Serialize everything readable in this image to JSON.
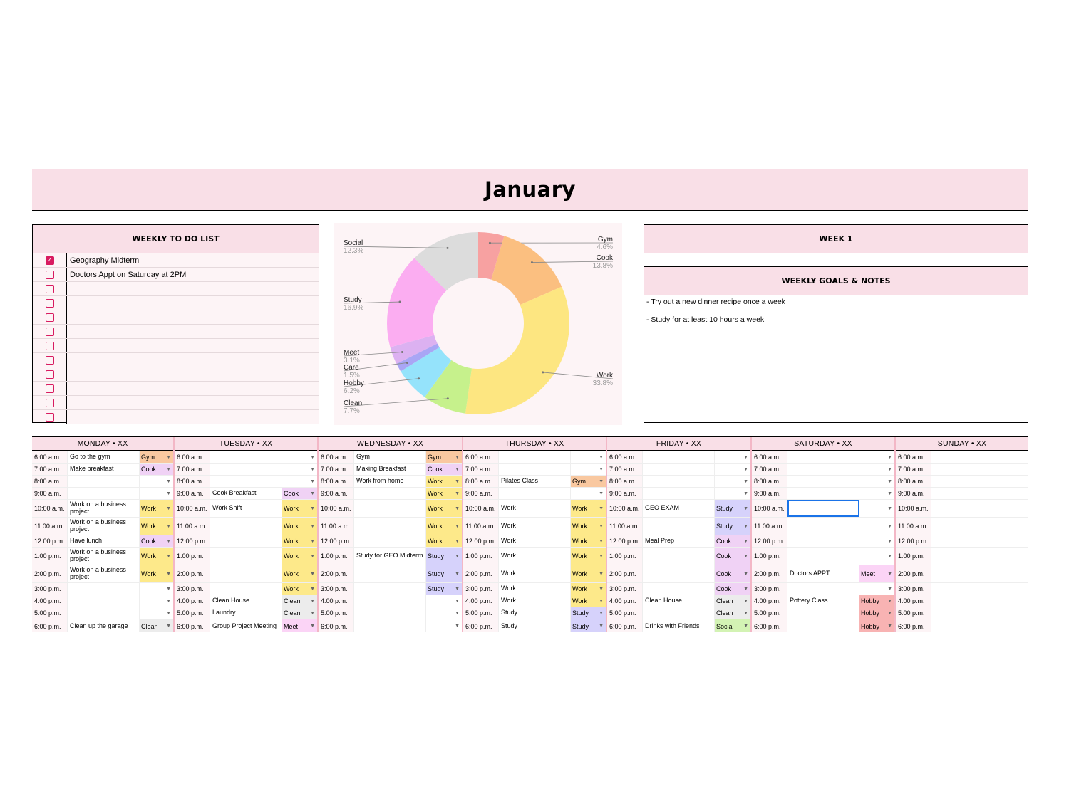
{
  "title": "January",
  "todo": {
    "header": "WEEKLY TO DO LIST",
    "items": [
      {
        "text": "Geography Midterm",
        "checked": true
      },
      {
        "text": "Doctors Appt on Saturday at 2PM",
        "checked": false
      },
      {
        "text": "",
        "checked": false
      },
      {
        "text": "",
        "checked": false
      },
      {
        "text": "",
        "checked": false
      },
      {
        "text": "",
        "checked": false
      },
      {
        "text": "",
        "checked": false
      },
      {
        "text": "",
        "checked": false
      },
      {
        "text": "",
        "checked": false
      },
      {
        "text": "",
        "checked": false
      },
      {
        "text": "",
        "checked": false
      },
      {
        "text": "",
        "checked": false
      }
    ]
  },
  "week_label": "WEEK 1",
  "goals": {
    "header": "WEEKLY GOALS & NOTES",
    "lines": [
      "- Try out a new dinner recipe once a week",
      "- Study for at least 10 hours a week"
    ]
  },
  "chart_data": {
    "type": "pie",
    "donut": true,
    "slices": [
      {
        "label": "Gym",
        "value": 4.6,
        "pct": "4.6%",
        "color": "#f7a1a1"
      },
      {
        "label": "Cook",
        "value": 13.8,
        "pct": "13.8%",
        "color": "#fbbf80"
      },
      {
        "label": "Work",
        "value": 33.8,
        "pct": "33.8%",
        "color": "#fde681"
      },
      {
        "label": "Clean",
        "value": 7.7,
        "pct": "7.7%",
        "color": "#c6f18c"
      },
      {
        "label": "Hobby",
        "value": 6.2,
        "pct": "6.2%",
        "color": "#95e3fb"
      },
      {
        "label": "Care",
        "value": 1.5,
        "pct": "1.5%",
        "color": "#a9a6f5"
      },
      {
        "label": "Meet",
        "value": 3.1,
        "pct": "3.1%",
        "color": "#dcb1f1"
      },
      {
        "label": "Study",
        "value": 16.9,
        "pct": "16.9%",
        "color": "#fbadf1"
      },
      {
        "label": "Social",
        "value": 12.3,
        "pct": "12.3%",
        "color": "#dcdcdc"
      }
    ]
  },
  "tag_colors": {
    "Gym": "#f9c8a0",
    "Cook": "#f0d2f5",
    "Work": "#fde98a",
    "Study": "#d6d2fb",
    "Clean": "#ececec",
    "Meet": "#fbd4f6",
    "Hobby": "#f8b3b3",
    "Social": "#d3f3b4"
  },
  "days": [
    {
      "name": "MONDAY • XX",
      "rows": [
        {
          "time": "6:00 a.m.",
          "event": "Go to the gym",
          "tag": "Gym"
        },
        {
          "time": "7:00 a.m.",
          "event": "Make breakfast",
          "tag": "Cook"
        },
        {
          "time": "8:00 a.m.",
          "event": "",
          "tag": ""
        },
        {
          "time": "9:00 a.m.",
          "event": "",
          "tag": ""
        },
        {
          "time": "10:00 a.m.",
          "event": "Work on a business project",
          "tag": "Work"
        },
        {
          "time": "11:00 a.m.",
          "event": "Work on a business project",
          "tag": "Work"
        },
        {
          "time": "12:00 p.m.",
          "event": "Have lunch",
          "tag": "Cook"
        },
        {
          "time": "1:00 p.m.",
          "event": "Work on a business project",
          "tag": "Work"
        },
        {
          "time": "2:00 p.m.",
          "event": "Work on a business project",
          "tag": "Work"
        },
        {
          "time": "3:00 p.m.",
          "event": "",
          "tag": ""
        },
        {
          "time": "4:00 p.m.",
          "event": "",
          "tag": ""
        },
        {
          "time": "5:00 p.m.",
          "event": "",
          "tag": ""
        },
        {
          "time": "6:00 p.m.",
          "event": "Clean up the garage",
          "tag": "Clean"
        }
      ]
    },
    {
      "name": "TUESDAY • XX",
      "rows": [
        {
          "time": "6:00 a.m.",
          "event": "",
          "tag": ""
        },
        {
          "time": "7:00 a.m.",
          "event": "",
          "tag": ""
        },
        {
          "time": "8:00 a.m.",
          "event": "",
          "tag": ""
        },
        {
          "time": "9:00 a.m.",
          "event": "Cook Breakfast",
          "tag": "Cook"
        },
        {
          "time": "10:00 a.m.",
          "event": "Work Shift",
          "tag": "Work"
        },
        {
          "time": "11:00 a.m.",
          "event": "",
          "tag": "Work"
        },
        {
          "time": "12:00 p.m.",
          "event": "",
          "tag": "Work"
        },
        {
          "time": "1:00 p.m.",
          "event": "",
          "tag": "Work"
        },
        {
          "time": "2:00 p.m.",
          "event": "",
          "tag": "Work"
        },
        {
          "time": "3:00 p.m.",
          "event": "",
          "tag": "Work"
        },
        {
          "time": "4:00 p.m.",
          "event": "Clean House",
          "tag": "Clean"
        },
        {
          "time": "5:00 p.m.",
          "event": "Laundry",
          "tag": "Clean"
        },
        {
          "time": "6:00 p.m.",
          "event": "Group Project Meeting",
          "tag": "Meet"
        }
      ]
    },
    {
      "name": "WEDNESDAY • XX",
      "rows": [
        {
          "time": "6:00 a.m.",
          "event": "Gym",
          "tag": "Gym"
        },
        {
          "time": "7:00 a.m.",
          "event": "Making Breakfast",
          "tag": "Cook"
        },
        {
          "time": "8:00 a.m.",
          "event": "Work from home",
          "tag": "Work"
        },
        {
          "time": "9:00 a.m.",
          "event": "",
          "tag": "Work"
        },
        {
          "time": "10:00 a.m.",
          "event": "",
          "tag": "Work"
        },
        {
          "time": "11:00 a.m.",
          "event": "",
          "tag": "Work"
        },
        {
          "time": "12:00 p.m.",
          "event": "",
          "tag": "Work"
        },
        {
          "time": "1:00 p.m.",
          "event": "Study for GEO Midterm",
          "tag": "Study"
        },
        {
          "time": "2:00 p.m.",
          "event": "",
          "tag": "Study"
        },
        {
          "time": "3:00 p.m.",
          "event": "",
          "tag": "Study"
        },
        {
          "time": "4:00 p.m.",
          "event": "",
          "tag": ""
        },
        {
          "time": "5:00 p.m.",
          "event": "",
          "tag": ""
        },
        {
          "time": "6:00 p.m.",
          "event": "",
          "tag": ""
        }
      ]
    },
    {
      "name": "THURSDAY • XX",
      "rows": [
        {
          "time": "6:00 a.m.",
          "event": "",
          "tag": ""
        },
        {
          "time": "7:00 a.m.",
          "event": "",
          "tag": ""
        },
        {
          "time": "8:00 a.m.",
          "event": "Pilates Class",
          "tag": "Gym"
        },
        {
          "time": "9:00 a.m.",
          "event": "",
          "tag": ""
        },
        {
          "time": "10:00 a.m.",
          "event": "Work",
          "tag": "Work"
        },
        {
          "time": "11:00 a.m.",
          "event": "Work",
          "tag": "Work"
        },
        {
          "time": "12:00 p.m.",
          "event": "Work",
          "tag": "Work"
        },
        {
          "time": "1:00 p.m.",
          "event": "Work",
          "tag": "Work"
        },
        {
          "time": "2:00 p.m.",
          "event": "Work",
          "tag": "Work"
        },
        {
          "time": "3:00 p.m.",
          "event": "Work",
          "tag": "Work"
        },
        {
          "time": "4:00 p.m.",
          "event": "Work",
          "tag": "Work"
        },
        {
          "time": "5:00 p.m.",
          "event": "Study",
          "tag": "Study"
        },
        {
          "time": "6:00 p.m.",
          "event": "Study",
          "tag": "Study"
        }
      ]
    },
    {
      "name": "FRIDAY • XX",
      "rows": [
        {
          "time": "6:00 a.m.",
          "event": "",
          "tag": ""
        },
        {
          "time": "7:00 a.m.",
          "event": "",
          "tag": ""
        },
        {
          "time": "8:00 a.m.",
          "event": "",
          "tag": ""
        },
        {
          "time": "9:00 a.m.",
          "event": "",
          "tag": ""
        },
        {
          "time": "10:00 a.m.",
          "event": "GEO EXAM",
          "tag": "Study"
        },
        {
          "time": "11:00 a.m.",
          "event": "",
          "tag": "Study"
        },
        {
          "time": "12:00 p.m.",
          "event": "Meal Prep",
          "tag": "Cook"
        },
        {
          "time": "1:00 p.m.",
          "event": "",
          "tag": "Cook"
        },
        {
          "time": "2:00 p.m.",
          "event": "",
          "tag": "Cook"
        },
        {
          "time": "3:00 p.m.",
          "event": "",
          "tag": "Cook"
        },
        {
          "time": "4:00 p.m.",
          "event": "Clean House",
          "tag": "Clean"
        },
        {
          "time": "5:00 p.m.",
          "event": "",
          "tag": "Clean"
        },
        {
          "time": "6:00 p.m.",
          "event": "Drinks with Friends",
          "tag": "Social"
        }
      ]
    },
    {
      "name": "SATURDAY • XX",
      "rows": [
        {
          "time": "6:00 a.m.",
          "event": "",
          "tag": ""
        },
        {
          "time": "7:00 a.m.",
          "event": "",
          "tag": ""
        },
        {
          "time": "8:00 a.m.",
          "event": "",
          "tag": ""
        },
        {
          "time": "9:00 a.m.",
          "event": "",
          "tag": ""
        },
        {
          "time": "10:00 a.m.",
          "event": "",
          "tag": ""
        },
        {
          "time": "11:00 a.m.",
          "event": "",
          "tag": ""
        },
        {
          "time": "12:00 p.m.",
          "event": "",
          "tag": ""
        },
        {
          "time": "1:00 p.m.",
          "event": "",
          "tag": ""
        },
        {
          "time": "2:00 p.m.",
          "event": "Doctors APPT",
          "tag": "Meet"
        },
        {
          "time": "3:00 p.m.",
          "event": "",
          "tag": ""
        },
        {
          "time": "4:00 p.m.",
          "event": "Pottery Class",
          "tag": "Hobby"
        },
        {
          "time": "5:00 p.m.",
          "event": "",
          "tag": "Hobby"
        },
        {
          "time": "6:00 p.m.",
          "event": "",
          "tag": "Hobby"
        }
      ]
    },
    {
      "name": "SUNDAY • XX",
      "rows": [
        {
          "time": "6:00 a.m.",
          "event": "",
          "tag": ""
        },
        {
          "time": "7:00 a.m.",
          "event": "",
          "tag": ""
        },
        {
          "time": "8:00 a.m.",
          "event": "",
          "tag": ""
        },
        {
          "time": "9:00 a.m.",
          "event": "",
          "tag": ""
        },
        {
          "time": "10:00 a.m.",
          "event": "",
          "tag": ""
        },
        {
          "time": "11:00 a.m.",
          "event": "",
          "tag": ""
        },
        {
          "time": "12:00 p.m.",
          "event": "",
          "tag": ""
        },
        {
          "time": "1:00 p.m.",
          "event": "",
          "tag": ""
        },
        {
          "time": "2:00 p.m.",
          "event": "",
          "tag": ""
        },
        {
          "time": "3:00 p.m.",
          "event": "",
          "tag": ""
        },
        {
          "time": "4:00 p.m.",
          "event": "",
          "tag": ""
        },
        {
          "time": "5:00 p.m.",
          "event": "",
          "tag": ""
        },
        {
          "time": "6:00 p.m.",
          "event": "",
          "tag": ""
        }
      ]
    }
  ]
}
